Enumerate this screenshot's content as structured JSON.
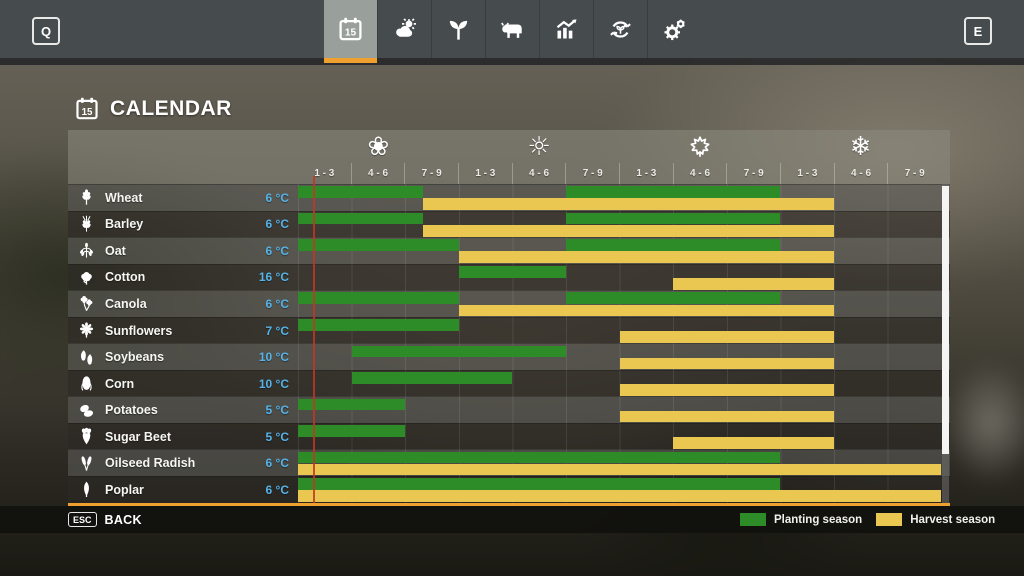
{
  "topbar": {
    "left_key": "Q",
    "right_key": "E",
    "calendar_day": "15",
    "tabs": [
      {
        "name": "calendar",
        "icon": "calendar-icon",
        "active": true
      },
      {
        "name": "weather",
        "icon": "weather-icon",
        "active": false
      },
      {
        "name": "crops",
        "icon": "seedling-icon",
        "active": false
      },
      {
        "name": "animals",
        "icon": "cow-icon",
        "active": false
      },
      {
        "name": "economy",
        "icon": "chart-icon",
        "active": false
      },
      {
        "name": "crop-rotation",
        "icon": "rotation-icon",
        "active": false
      },
      {
        "name": "settings",
        "icon": "gear-icon",
        "active": false
      }
    ]
  },
  "page": {
    "title": "CALENDAR",
    "title_icon": "calendar-icon"
  },
  "calendar": {
    "seasons": [
      {
        "name": "spring",
        "icon": "flower-icon",
        "glyph": "❀"
      },
      {
        "name": "summer",
        "icon": "sun-icon",
        "glyph": "☼"
      },
      {
        "name": "autumn",
        "icon": "maple-leaf-icon",
        "glyph": null
      },
      {
        "name": "winter",
        "icon": "snowflake-icon",
        "glyph": "❄"
      }
    ],
    "period_labels": [
      "1 - 3",
      "4 - 6",
      "7 - 9",
      "1 - 3",
      "4 - 6",
      "7 - 9",
      "1 - 3",
      "4 - 6",
      "7 - 9",
      "1 - 3",
      "4 - 6",
      "7 - 9"
    ],
    "year_days": 36,
    "current_day": 0.45,
    "colors": {
      "planting": "#2e8c28",
      "harvest": "#e9c750",
      "accent": "#f0a02f",
      "temperature": "#55b3e8"
    },
    "crops": [
      {
        "name": "Wheat",
        "temperature": "6 °C",
        "icon": "wheat-icon",
        "planting_days": [
          [
            0,
            7
          ],
          [
            15,
            27
          ]
        ],
        "harvest_days": [
          [
            7,
            30
          ]
        ]
      },
      {
        "name": "Barley",
        "temperature": "6 °C",
        "icon": "barley-icon",
        "planting_days": [
          [
            0,
            7
          ],
          [
            15,
            27
          ]
        ],
        "harvest_days": [
          [
            7,
            30
          ]
        ]
      },
      {
        "name": "Oat",
        "temperature": "6 °C",
        "icon": "oat-icon",
        "planting_days": [
          [
            0,
            9
          ],
          [
            15,
            27
          ]
        ],
        "harvest_days": [
          [
            9,
            30
          ]
        ]
      },
      {
        "name": "Cotton",
        "temperature": "16 °C",
        "icon": "cotton-icon",
        "planting_days": [
          [
            9,
            15
          ]
        ],
        "harvest_days": [
          [
            21,
            30
          ]
        ]
      },
      {
        "name": "Canola",
        "temperature": "6 °C",
        "icon": "canola-icon",
        "planting_days": [
          [
            0,
            9
          ],
          [
            15,
            27
          ]
        ],
        "harvest_days": [
          [
            9,
            30
          ]
        ]
      },
      {
        "name": "Sunflowers",
        "temperature": "7 °C",
        "icon": "sunflower-icon",
        "planting_days": [
          [
            0,
            9
          ]
        ],
        "harvest_days": [
          [
            18,
            30
          ]
        ]
      },
      {
        "name": "Soybeans",
        "temperature": "10 °C",
        "icon": "soybean-icon",
        "planting_days": [
          [
            3,
            15
          ]
        ],
        "harvest_days": [
          [
            18,
            30
          ]
        ]
      },
      {
        "name": "Corn",
        "temperature": "10 °C",
        "icon": "corn-icon",
        "planting_days": [
          [
            3,
            12
          ]
        ],
        "harvest_days": [
          [
            18,
            30
          ]
        ]
      },
      {
        "name": "Potatoes",
        "temperature": "5 °C",
        "icon": "potato-icon",
        "planting_days": [
          [
            0,
            6
          ]
        ],
        "harvest_days": [
          [
            18,
            30
          ]
        ]
      },
      {
        "name": "Sugar Beet",
        "temperature": "5 °C",
        "icon": "sugar-beet-icon",
        "planting_days": [
          [
            0,
            6
          ]
        ],
        "harvest_days": [
          [
            21,
            30
          ]
        ]
      },
      {
        "name": "Oilseed Radish",
        "temperature": "6 °C",
        "icon": "oilseed-radish-icon",
        "planting_days": [
          [
            0,
            27
          ]
        ],
        "harvest_days": [
          [
            0,
            36
          ]
        ]
      },
      {
        "name": "Poplar",
        "temperature": "6 °C",
        "icon": "poplar-icon",
        "planting_days": [
          [
            0,
            27
          ]
        ],
        "harvest_days": [
          [
            0,
            36
          ]
        ]
      }
    ]
  },
  "footer": {
    "esc_key": "ESC",
    "back_label": "BACK",
    "legend": [
      {
        "label": "Planting season",
        "color_key": "planting"
      },
      {
        "label": "Harvest season",
        "color_key": "harvest"
      }
    ]
  }
}
